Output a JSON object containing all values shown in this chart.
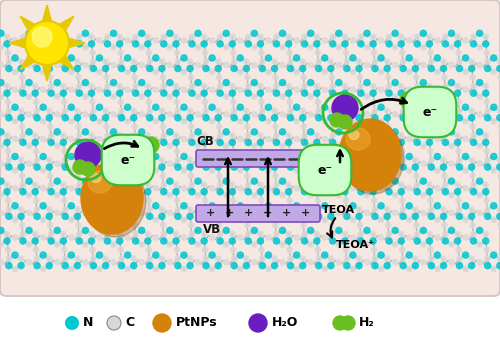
{
  "bg_color": "#f5e8e2",
  "outer_bg": "#ffffff",
  "fig_width": 5.0,
  "fig_height": 3.44,
  "cb_label": "CB",
  "vb_label": "VB",
  "teoa_label": "TEOA",
  "teoa_plus_label": "TEOA⁺",
  "e_label": "e⁻",
  "sun_color": "#ffe500",
  "sun_ray_color": "#e6c800",
  "cb_color": "#c3a8e8",
  "vb_color": "#c3a8e8",
  "pt_color": "#d4820a",
  "pt_highlight": "#f0a830",
  "n_color": "#00c8d0",
  "c_color": "#d8d8d8",
  "h2o_color": "#6a1ebf",
  "h2_color": "#6abf20",
  "network_line_color": "#b8b8b8",
  "network_bond_color": "#aaaaaa",
  "e_box_color": "#ccffcc",
  "e_box_edge": "#33bb33",
  "band_edge_color": "#7c4dbb",
  "arrow_color": "#111111"
}
